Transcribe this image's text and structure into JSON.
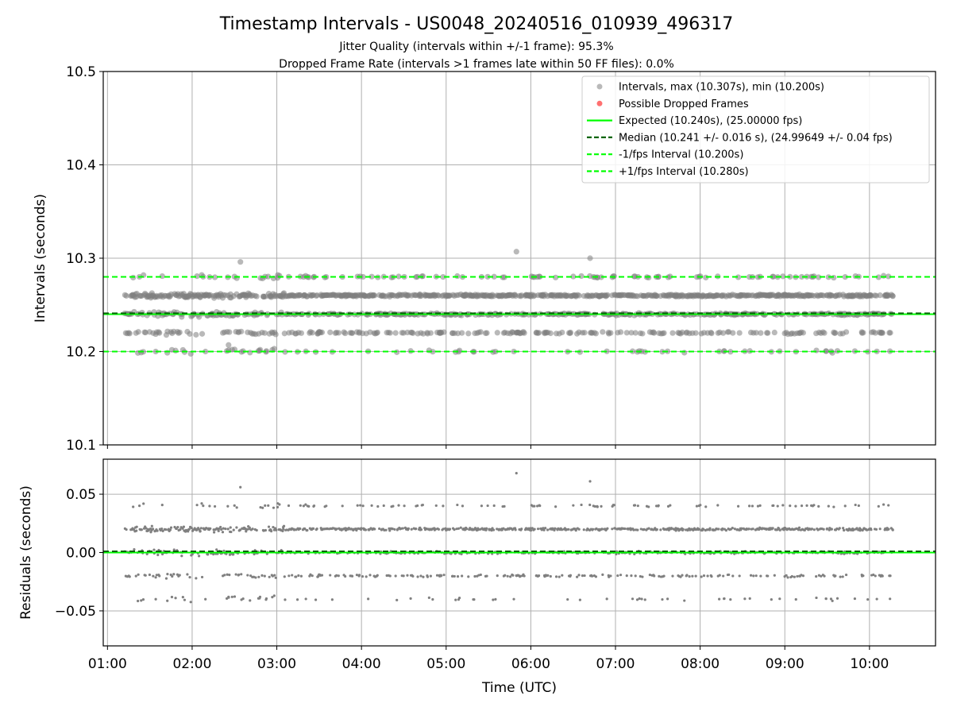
{
  "title": "Timestamp Intervals - US0048_20240516_010939_496317",
  "subtitle_lines": [
    "Jitter Quality (intervals within +/-1 frame): 95.3%",
    "Dropped Frame Rate (intervals >1 frames late within 50 FF files): 0.0%"
  ],
  "colors": {
    "points": "#808080",
    "dropped": "#ff4040",
    "expected": "#00ff00",
    "median": "#006400",
    "interval": "#00ff00",
    "grid": "#b0b0b0",
    "axis": "#000000"
  },
  "chart_data": [
    {
      "type": "scatter",
      "panel": "top",
      "xlabel": "",
      "ylabel": "Intervals (seconds)",
      "xlim": [
        0.95,
        10.78
      ],
      "ylim": [
        10.1,
        10.5
      ],
      "yticks": [
        10.1,
        10.2,
        10.3,
        10.4,
        10.5
      ],
      "ytick_labels": [
        "10.1",
        "10.2",
        "10.3",
        "10.4",
        "10.5"
      ],
      "x_range_data": [
        1.2,
        10.28
      ],
      "interval_levels": [
        10.2,
        10.22,
        10.24,
        10.26,
        10.28
      ],
      "outliers": [
        {
          "x": 5.83,
          "y": 10.307
        },
        {
          "x": 6.7,
          "y": 10.3
        },
        {
          "x": 2.57,
          "y": 10.296
        },
        {
          "x": 1.57,
          "y": 10.2
        },
        {
          "x": 2.97,
          "y": 10.203
        },
        {
          "x": 2.43,
          "y": 10.207
        }
      ],
      "lines": [
        {
          "name": "Expected (10.240s), (25.00000 fps)",
          "y": 10.24,
          "style": "solid"
        },
        {
          "name": "Median (10.241 +/- 0.016 s), (24.99649 +/- 0.04 fps)",
          "y": 10.241,
          "style": "dashed"
        },
        {
          "name": "-1/fps Interval (10.200s)",
          "y": 10.2,
          "style": "dashed"
        },
        {
          "name": "+1/fps Interval (10.280s)",
          "y": 10.28,
          "style": "dashed"
        }
      ],
      "legend": {
        "placement": "upper-right",
        "entries": [
          "Intervals, max (10.307s), min (10.200s)",
          "Possible Dropped Frames",
          "Expected (10.240s), (25.00000 fps)",
          "Median (10.241 +/- 0.016 s), (24.99649 +/- 0.04 fps)",
          "-1/fps Interval (10.200s)",
          "+1/fps Interval (10.280s)"
        ]
      },
      "grid": true
    },
    {
      "type": "scatter",
      "panel": "bottom",
      "xlabel": "Time (UTC)",
      "ylabel": "Residuals (seconds)",
      "xlim": [
        0.95,
        10.78
      ],
      "ylim": [
        -0.08,
        0.08
      ],
      "yticks": [
        -0.05,
        0.0,
        0.05
      ],
      "ytick_labels": [
        "−0.05",
        "0.00",
        "0.05"
      ],
      "xticks": [
        1,
        2,
        3,
        4,
        5,
        6,
        7,
        8,
        9,
        10
      ],
      "xtick_labels": [
        "01:00",
        "02:00",
        "03:00",
        "04:00",
        "05:00",
        "06:00",
        "07:00",
        "08:00",
        "09:00",
        "10:00"
      ],
      "residual_levels": [
        -0.04,
        -0.02,
        0.0,
        0.02,
        0.04
      ],
      "outliers": [
        {
          "x": 5.83,
          "y": 0.068
        },
        {
          "x": 6.7,
          "y": 0.061
        },
        {
          "x": 2.57,
          "y": 0.056
        },
        {
          "x": 1.57,
          "y": -0.04
        },
        {
          "x": 2.97,
          "y": -0.037
        },
        {
          "x": 2.43,
          "y": -0.038
        }
      ],
      "lines": [
        {
          "name": "Expected",
          "y": 0.0,
          "style": "solid"
        },
        {
          "name": "Median",
          "y": 0.001,
          "style": "dashed"
        }
      ],
      "grid": true
    }
  ]
}
